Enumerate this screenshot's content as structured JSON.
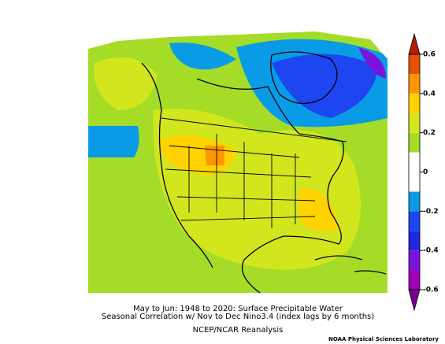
{
  "colorbar": {
    "lim": [
      -0.6,
      0.6
    ],
    "ticks": [
      -0.6,
      -0.4,
      -0.2,
      0,
      0.2,
      0.4,
      0.6
    ],
    "levels": [
      -0.6,
      -0.5,
      -0.4,
      -0.3,
      -0.2,
      -0.1,
      0,
      0.1,
      0.2,
      0.3,
      0.4,
      0.5,
      0.6
    ],
    "colors": [
      "#a000b4",
      "#7814dc",
      "#1e28dc",
      "#1e46f0",
      "#0a9be6",
      "#ffffff",
      "#ffffff",
      "#a5dc28",
      "#d2e61e",
      "#ffd200",
      "#ff9600",
      "#e65000"
    ],
    "under_color": "#780096",
    "over_color": "#b41e00"
  },
  "caption": {
    "line1": "May to Jun: 1948 to 2020: Surface Precipitable Water",
    "line2": "Seasonal Correlation w/ Nov to Dec Nino3.4 (index lags by 6 months)",
    "line3": "NCEP/NCAR Reanalysis"
  },
  "credit": "NOAA Physical Sciences Laboratory"
}
